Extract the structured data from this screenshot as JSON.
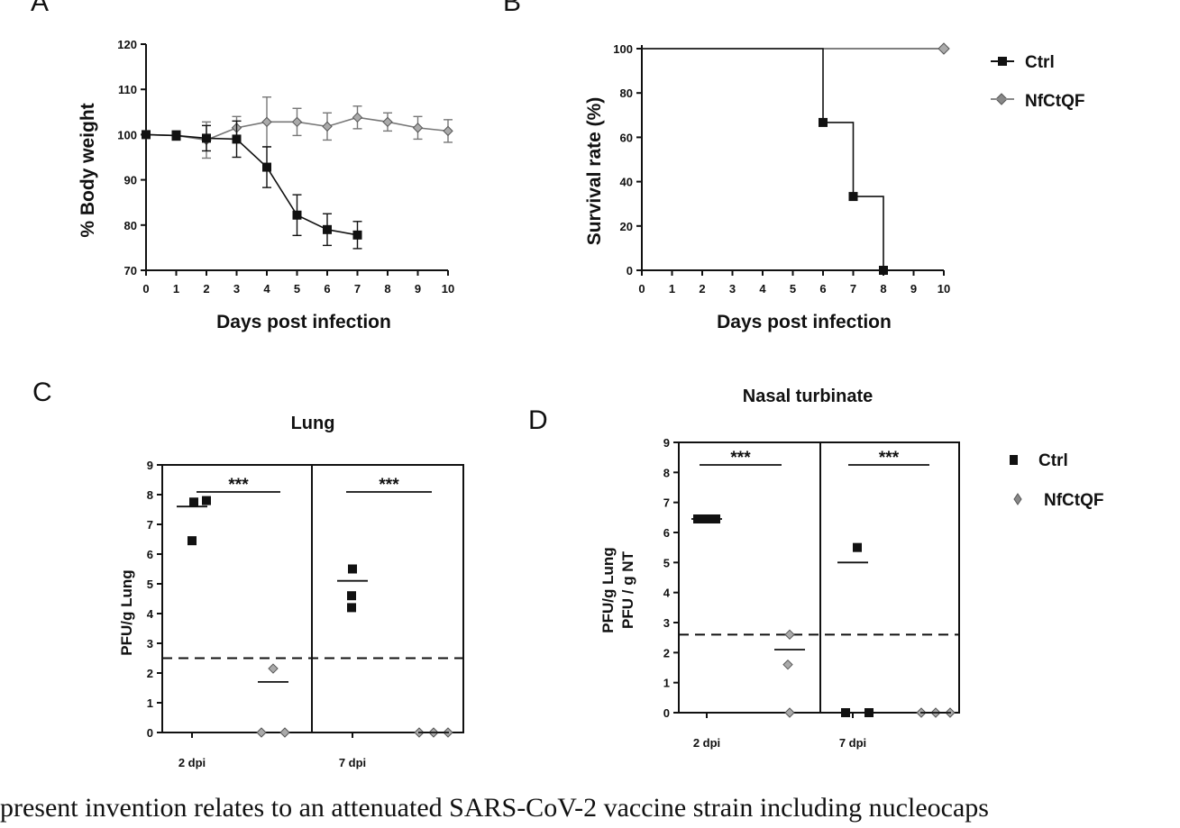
{
  "chart_data": [
    {
      "panel": "A",
      "type": "line",
      "title": "",
      "xlabel": "Days post infection",
      "ylabel": "% Body weight",
      "xlim": [
        0,
        10
      ],
      "ylim": [
        70,
        120
      ],
      "xticks": [
        "0",
        "1",
        "2",
        "3",
        "4",
        "5",
        "6",
        "7",
        "8",
        "9",
        "10"
      ],
      "yticks": [
        "70",
        "80",
        "90",
        "100",
        "110",
        "120"
      ],
      "series": [
        {
          "name": "Ctrl",
          "color": "#111111",
          "marker": "square",
          "x": [
            0,
            1,
            2,
            3,
            4,
            5,
            6,
            7
          ],
          "y": [
            100,
            99.8,
            99.2,
            99,
            92.8,
            82.2,
            79,
            77.8
          ],
          "err": [
            0.5,
            1,
            2.8,
            4,
            4.5,
            4.5,
            3.5,
            3
          ]
        },
        {
          "name": "NfCtQF",
          "color": "#777777",
          "marker": "diamond",
          "x": [
            0,
            1,
            2,
            3,
            4,
            5,
            6,
            7,
            8,
            9,
            10
          ],
          "y": [
            100,
            99.8,
            98.8,
            101.5,
            102.8,
            102.8,
            101.8,
            103.8,
            102.8,
            101.5,
            100.8
          ],
          "err": [
            0.5,
            1,
            4,
            2.5,
            5.5,
            3,
            3,
            2.5,
            2,
            2.5,
            2.5
          ]
        }
      ]
    },
    {
      "panel": "B",
      "type": "line",
      "title": "",
      "xlabel": "Days post infection",
      "ylabel": "Survival rate (%)",
      "xlim": [
        0,
        10
      ],
      "ylim": [
        0,
        100
      ],
      "xticks": [
        "0",
        "1",
        "2",
        "3",
        "4",
        "5",
        "6",
        "7",
        "8",
        "9",
        "10"
      ],
      "yticks": [
        "0",
        "20",
        "40",
        "60",
        "80",
        "100"
      ],
      "series": [
        {
          "name": "Ctrl",
          "color": "#111111",
          "marker": "square",
          "step": true,
          "x": [
            0,
            6,
            6,
            7,
            7,
            8,
            8
          ],
          "y": [
            100,
            100,
            66.7,
            66.7,
            33.3,
            33.3,
            0
          ],
          "marker_x": [
            6,
            7,
            8
          ],
          "marker_y": [
            66.7,
            33.3,
            0
          ]
        },
        {
          "name": "NfCtQF",
          "color": "#777777",
          "marker": "diamond",
          "step": true,
          "x": [
            0,
            10
          ],
          "y": [
            100,
            100
          ],
          "marker_x": [
            10
          ],
          "marker_y": [
            100
          ]
        }
      ]
    },
    {
      "panel": "C",
      "type": "scatter",
      "title": "Lung",
      "xlabel": "",
      "ylabel": "PFU/g Lung",
      "ylim": [
        0,
        9
      ],
      "yticks": [
        "0",
        "1",
        "2",
        "3",
        "4",
        "5",
        "6",
        "7",
        "8",
        "9"
      ],
      "groups": [
        "2 dpi",
        "7 dpi"
      ],
      "detection_limit": 2.5,
      "significance": [
        "***",
        "***"
      ],
      "series": [
        {
          "name": "Ctrl",
          "color": "#111111",
          "marker": "square",
          "points": [
            [
              0,
              7.75
            ],
            [
              0,
              7.8
            ],
            [
              0,
              6.45
            ],
            [
              1,
              5.5
            ],
            [
              1,
              4.6
            ],
            [
              1,
              4.2
            ]
          ],
          "means": [
            7.6,
            5.1
          ]
        },
        {
          "name": "NfCtQF",
          "color": "#777777",
          "marker": "diamond",
          "points": [
            [
              0,
              2.15
            ],
            [
              0,
              0
            ],
            [
              0,
              0
            ],
            [
              1,
              0
            ],
            [
              1,
              0
            ],
            [
              1,
              0
            ]
          ],
          "means": [
            1.7,
            0
          ]
        }
      ]
    },
    {
      "panel": "D",
      "type": "scatter",
      "title": "Nasal turbinate",
      "xlabel": "",
      "ylabel": "PFU/g Lung",
      "ylabel2": "PFU / g NT",
      "ylim": [
        0,
        9
      ],
      "yticks": [
        "0",
        "1",
        "2",
        "3",
        "4",
        "5",
        "6",
        "7",
        "8",
        "9"
      ],
      "groups": [
        "2 dpi",
        "7 dpi"
      ],
      "detection_limit": 2.6,
      "significance": [
        "***",
        "***"
      ],
      "series": [
        {
          "name": "Ctrl",
          "color": "#111111",
          "marker": "square",
          "points": [
            [
              0,
              6.45
            ],
            [
              0,
              6.45
            ],
            [
              0,
              6.45
            ],
            [
              1,
              5.5
            ],
            [
              1,
              0
            ],
            [
              1,
              0
            ]
          ],
          "means": [
            6.45,
            5.0
          ]
        },
        {
          "name": "NfCtQF",
          "color": "#777777",
          "marker": "diamond",
          "points": [
            [
              0,
              2.6
            ],
            [
              0,
              1.6
            ],
            [
              0,
              0
            ],
            [
              1,
              0
            ],
            [
              1,
              0
            ],
            [
              1,
              0
            ]
          ],
          "means": [
            2.1,
            0
          ]
        }
      ]
    }
  ],
  "panel_letters": {
    "a": "A",
    "b": "B",
    "c": "C",
    "d": "D"
  },
  "legend_top": {
    "ctrl": "Ctrl",
    "nfctqf": "NfCtQF"
  },
  "legend_bottom": {
    "ctrl": "Ctrl",
    "nfctqf": "NfCtQF"
  },
  "caption": "present invention relates to an attenuated SARS-CoV-2 vaccine strain including nucleocaps"
}
